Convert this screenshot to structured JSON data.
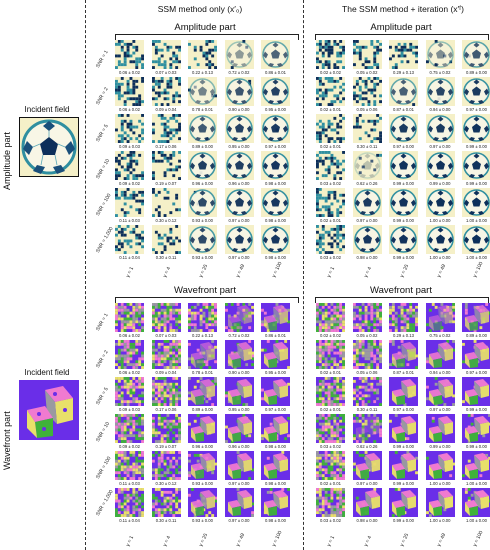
{
  "columns": {
    "left_title": "SSM method only (x′₀)",
    "right_title": "The SSM method + iteration (x′ᶠ)"
  },
  "sections": {
    "amplitude_title": "Amplitude part",
    "wavefront_title": "Wavefront part"
  },
  "side": {
    "amplitude_label": "Amplitude part",
    "wavefront_label": "Wavefront part",
    "incident_field_label": "Incident field"
  },
  "snr_labels": [
    "SNR = 1",
    "SNR = 2",
    "SNR = 5",
    "SNR = 10",
    "SNR = 100",
    "SNR = 1,000"
  ],
  "gamma_labels": [
    "γ = 1",
    "γ = 4",
    "γ = 25",
    "γ = 49",
    "γ = 100"
  ],
  "values": {
    "amp_left": [
      [
        "0.06 ± 0.02",
        "0.07 ± 0.03",
        "0.22 ± 0.13",
        "0.72 ± 0.02",
        "0.86 ± 0.01"
      ],
      [
        "0.06 ± 0.02",
        "0.09 ± 0.04",
        "0.78 ± 0.01",
        "0.90 ± 0.00",
        "0.95 ± 0.00"
      ],
      [
        "0.09 ± 0.03",
        "0.17 ± 0.06",
        "0.89 ± 0.00",
        "0.95 ± 0.00",
        "0.97 ± 0.00"
      ],
      [
        "0.09 ± 0.02",
        "0.19 ± 0.07",
        "0.96 ± 0.00",
        "0.96 ± 0.00",
        "0.98 ± 0.00"
      ],
      [
        "0.11 ± 0.03",
        "0.30 ± 0.12",
        "0.93 ± 0.00",
        "0.97 ± 0.00",
        "0.98 ± 0.00"
      ],
      [
        "0.11 ± 0.04",
        "0.30 ± 0.11",
        "0.93 ± 0.00",
        "0.97 ± 0.00",
        "0.98 ± 0.00"
      ]
    ],
    "amp_right": [
      [
        "0.02 ± 0.02",
        "0.05 ± 0.02",
        "0.29 ± 0.13",
        "0.75 ± 0.02",
        "0.89 ± 0.00"
      ],
      [
        "0.02 ± 0.01",
        "0.05 ± 0.06",
        "0.87 ± 0.01",
        "0.94 ± 0.00",
        "0.97 ± 0.00"
      ],
      [
        "0.02 ± 0.01",
        "0.30 ± 0.11",
        "0.97 ± 0.00",
        "0.97 ± 0.00",
        "0.99 ± 0.00"
      ],
      [
        "0.03 ± 0.02",
        "0.62 ± 0.26",
        "0.99 ± 0.00",
        "0.99 ± 0.00",
        "0.99 ± 0.00"
      ],
      [
        "0.02 ± 0.01",
        "0.97 ± 0.00",
        "0.99 ± 0.00",
        "1.00 ± 0.00",
        "1.00 ± 0.00"
      ],
      [
        "0.03 ± 0.02",
        "0.98 ± 0.00",
        "0.99 ± 0.00",
        "1.00 ± 0.00",
        "1.00 ± 0.00"
      ]
    ],
    "wave_left": [
      [
        "0.06 ± 0.02",
        "0.07 ± 0.03",
        "0.22 ± 0.13",
        "0.72 ± 0.02",
        "0.86 ± 0.01"
      ],
      [
        "0.06 ± 0.02",
        "0.09 ± 0.04",
        "0.78 ± 0.01",
        "0.90 ± 0.00",
        "0.95 ± 0.00"
      ],
      [
        "0.09 ± 0.03",
        "0.17 ± 0.06",
        "0.89 ± 0.00",
        "0.95 ± 0.00",
        "0.97 ± 0.00"
      ],
      [
        "0.09 ± 0.02",
        "0.19 ± 0.07",
        "0.96 ± 0.00",
        "0.96 ± 0.00",
        "0.98 ± 0.00"
      ],
      [
        "0.11 ± 0.03",
        "0.30 ± 0.12",
        "0.93 ± 0.00",
        "0.97 ± 0.00",
        "0.98 ± 0.00"
      ],
      [
        "0.11 ± 0.04",
        "0.30 ± 0.11",
        "0.93 ± 0.00",
        "0.97 ± 0.00",
        "0.98 ± 0.00"
      ]
    ],
    "wave_right": [
      [
        "0.02 ± 0.02",
        "0.05 ± 0.02",
        "0.29 ± 0.13",
        "0.75 ± 0.02",
        "0.89 ± 0.00"
      ],
      [
        "0.02 ± 0.01",
        "0.05 ± 0.06",
        "0.87 ± 0.01",
        "0.94 ± 0.00",
        "0.97 ± 0.00"
      ],
      [
        "0.02 ± 0.01",
        "0.30 ± 0.11",
        "0.97 ± 0.00",
        "0.97 ± 0.00",
        "0.99 ± 0.00"
      ],
      [
        "0.03 ± 0.02",
        "0.62 ± 0.26",
        "0.99 ± 0.00",
        "0.99 ± 0.00",
        "0.99 ± 0.00"
      ],
      [
        "0.02 ± 0.01",
        "0.97 ± 0.00",
        "0.99 ± 0.00",
        "1.00 ± 0.00",
        "1.00 ± 0.00"
      ],
      [
        "0.03 ± 0.02",
        "0.98 ± 0.00",
        "0.99 ± 0.00",
        "1.00 ± 0.00",
        "1.00 ± 0.00"
      ]
    ]
  },
  "colors": {
    "amp_dark": "#0d2f5a",
    "amp_mid": "#2f8fa0",
    "amp_light": "#f5f0c8",
    "wave_purple": "#6a2ee8",
    "wave_green": "#3fb23a",
    "wave_pink": "#f07ad0",
    "wave_yellow": "#e8e06a",
    "wave_gray": "#9a9aa0"
  }
}
